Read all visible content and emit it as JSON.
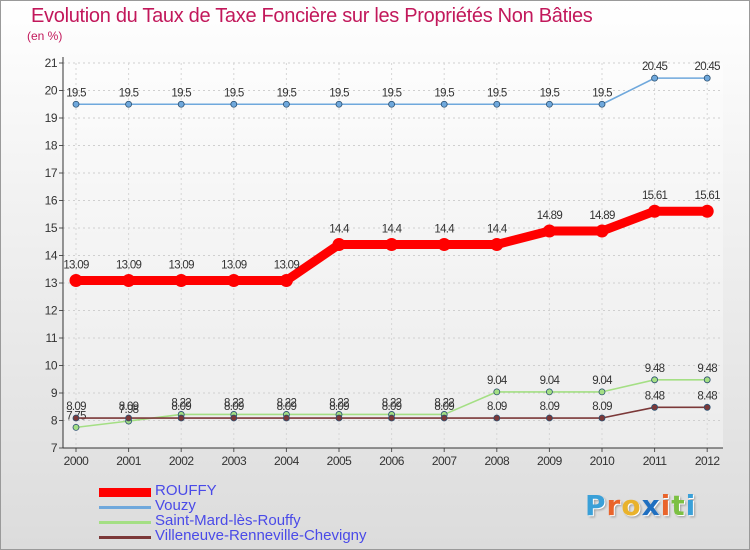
{
  "title": "Evolution du Taux de Taxe Foncière sur les Propriétés Non Bâties",
  "unit_label": "(en %)",
  "logo": {
    "text": "Proxiti",
    "letters": [
      "P",
      "r",
      "o",
      "x",
      "i",
      "t",
      "i"
    ],
    "colors": [
      "#3aa0d8",
      "#e9642b",
      "#e9b22b",
      "#1f6fc0",
      "#e9642b",
      "#7cc043",
      "#3aa0d8"
    ]
  },
  "chart_data": {
    "type": "line",
    "title": "Evolution du Taux de Taxe Foncière sur les Propriétés Non Bâties",
    "ylabel": "(en %)",
    "xlabel": "",
    "x": [
      "2000",
      "2001",
      "2002",
      "2003",
      "2004",
      "2005",
      "2006",
      "2007",
      "2008",
      "2009",
      "2010",
      "2011",
      "2012"
    ],
    "ylim": [
      7,
      21
    ],
    "yticks": [
      7,
      8,
      9,
      10,
      11,
      12,
      13,
      14,
      15,
      16,
      17,
      18,
      19,
      20,
      21
    ],
    "grid": true,
    "legend_position": "bottom-left",
    "series": [
      {
        "name": "ROUFFY",
        "color": "#ff0000",
        "style": "bold",
        "values": [
          13.09,
          13.09,
          13.09,
          13.09,
          13.09,
          14.4,
          14.4,
          14.4,
          14.4,
          14.89,
          14.89,
          15.61,
          15.61
        ],
        "labels": [
          "13.09",
          "13.09",
          "13.09",
          "13.09",
          "13.09",
          "14.4",
          "14.4",
          "14.4",
          "14.4",
          "14.89",
          "14.89",
          "15.61",
          "15.61"
        ]
      },
      {
        "name": "Vouzy",
        "color": "#6fa8dc",
        "style": "thin",
        "values": [
          19.5,
          19.5,
          19.5,
          19.5,
          19.5,
          19.5,
          19.5,
          19.5,
          19.5,
          19.5,
          19.5,
          20.45,
          20.45
        ],
        "labels": [
          "19.5",
          "19.5",
          "19.5",
          "19.5",
          "19.5",
          "19.5",
          "19.5",
          "19.5",
          "19.5",
          "19.5",
          "19.5",
          "20.45",
          "20.45"
        ]
      },
      {
        "name": "Saint-Mard-lès-Rouffy",
        "color": "#a4df84",
        "style": "thin",
        "values": [
          7.75,
          7.98,
          8.22,
          8.22,
          8.22,
          8.22,
          8.22,
          8.22,
          9.04,
          9.04,
          9.04,
          9.48,
          9.48
        ],
        "labels": [
          "7.75",
          "7.98",
          "8.22",
          "8.22",
          "8.22",
          "8.22",
          "8.22",
          "8.22",
          "9.04",
          "9.04",
          "9.04",
          "9.48",
          "9.48"
        ]
      },
      {
        "name": "Villeneuve-Renneville-Chevigny",
        "color": "#7b3838",
        "style": "thin",
        "values": [
          8.09,
          8.09,
          8.09,
          8.09,
          8.09,
          8.09,
          8.09,
          8.09,
          8.09,
          8.09,
          8.09,
          8.48,
          8.48
        ],
        "labels": [
          "8.09",
          "8.09",
          "8.09",
          "8.09",
          "8.09",
          "8.09",
          "8.09",
          "8.09",
          "8.09",
          "8.09",
          "8.09",
          "8.48",
          "8.48"
        ]
      }
    ]
  }
}
